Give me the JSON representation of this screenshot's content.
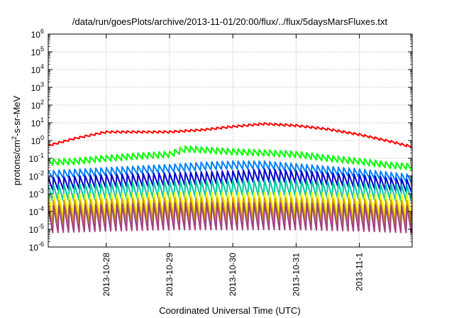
{
  "chart_data": {
    "type": "line",
    "title": "/data/run/goesPlots/archive/2013-11-01/20:00/flux/../flux/5daysMarsFluxes.txt",
    "xlabel": "Coordinated Universal Time (UTC)",
    "ylabel": {
      "prefix": "protons/cm",
      "sup": "2",
      "suffix": "-s-sr-MeV"
    },
    "yscale": "log",
    "ylim": [
      1e-06,
      1000000.0
    ],
    "xlim": [
      "2013-10-27T02:00",
      "2013-11-01T20:00"
    ],
    "grid": true,
    "legend": "none",
    "y_ticks": [
      {
        "base": "10",
        "exp": "6"
      },
      {
        "base": "10",
        "exp": "5"
      },
      {
        "base": "10",
        "exp": "4"
      },
      {
        "base": "10",
        "exp": "3"
      },
      {
        "base": "10",
        "exp": "2"
      },
      {
        "base": "10",
        "exp": "1"
      },
      {
        "base": "10",
        "exp": "0"
      },
      {
        "base": "10",
        "exp": "-1"
      },
      {
        "base": "10",
        "exp": "-2"
      },
      {
        "base": "10",
        "exp": "-3"
      },
      {
        "base": "10",
        "exp": "-4"
      },
      {
        "base": "10",
        "exp": "-5"
      },
      {
        "base": "10",
        "exp": "-6"
      }
    ],
    "x_ticks": [
      "2013-10-28",
      "2013-10-29",
      "2013-10-30",
      "2013-10-31",
      "2013-11-1"
    ],
    "sawtooth_period_hours": 2,
    "series": [
      {
        "color": "#ff0000",
        "low_amplitude_decades": 0.12,
        "x": [
          "2013-10-27T02:00",
          "2013-10-27T12:00",
          "2013-10-28T00:00",
          "2013-10-28T12:00",
          "2013-10-29T00:00",
          "2013-10-29T12:00",
          "2013-10-30T00:00",
          "2013-10-30T12:00",
          "2013-10-31T00:00",
          "2013-10-31T12:00",
          "2013-11-01T00:00",
          "2013-11-01T12:00",
          "2013-11-01T20:00"
        ],
        "y": [
          0.6,
          1.5,
          3.5,
          3.5,
          3.5,
          4.5,
          7,
          10,
          8,
          5,
          2.5,
          1,
          0.5
        ]
      },
      {
        "color": "#00ff00",
        "low_amplitude_decades": 0.35,
        "x": [
          "2013-10-27T02:00",
          "2013-10-27T12:00",
          "2013-10-28T00:00",
          "2013-10-28T12:00",
          "2013-10-29T00:00",
          "2013-10-29T06:00",
          "2013-10-29T12:00",
          "2013-10-30T00:00",
          "2013-10-30T12:00",
          "2013-10-31T00:00",
          "2013-10-31T12:00",
          "2013-11-01T00:00",
          "2013-11-01T12:00",
          "2013-11-01T20:00"
        ],
        "y": [
          0.09,
          0.1,
          0.15,
          0.2,
          0.25,
          0.5,
          0.45,
          0.35,
          0.3,
          0.25,
          0.15,
          0.1,
          0.06,
          0.05
        ]
      },
      {
        "color": "#0080ff",
        "low_amplitude_decades": 0.45,
        "x": [
          "2013-10-27T02:00",
          "2013-10-28T00:00",
          "2013-10-29T00:00",
          "2013-10-29T12:00",
          "2013-10-30T00:00",
          "2013-10-30T12:00",
          "2013-10-31T00:00",
          "2013-11-01T00:00",
          "2013-11-01T20:00"
        ],
        "y": [
          0.02,
          0.03,
          0.045,
          0.06,
          0.07,
          0.07,
          0.05,
          0.025,
          0.012
        ]
      },
      {
        "color": "#0000cc",
        "low_amplitude_decades": 0.7,
        "x": [
          "2013-10-27T02:00",
          "2013-10-28T00:00",
          "2013-10-29T00:00",
          "2013-10-30T00:00",
          "2013-10-30T12:00",
          "2013-10-31T00:00",
          "2013-11-01T00:00",
          "2013-11-01T20:00"
        ],
        "y": [
          0.008,
          0.012,
          0.015,
          0.02,
          0.025,
          0.02,
          0.012,
          0.006
        ]
      },
      {
        "color": "#00c8a0",
        "low_amplitude_decades": 0.9,
        "x": [
          "2013-10-27T02:00",
          "2013-10-28T00:00",
          "2013-10-29T00:00",
          "2013-10-30T00:00",
          "2013-10-31T00:00",
          "2013-11-01T00:00",
          "2013-11-01T20:00"
        ],
        "y": [
          0.003,
          0.004,
          0.005,
          0.006,
          0.006,
          0.004,
          0.003
        ]
      },
      {
        "color": "#ffff00",
        "low_amplitude_decades": 1.2,
        "x": [
          "2013-10-27T02:00",
          "2013-10-28T00:00",
          "2013-10-29T00:00",
          "2013-10-30T00:00",
          "2013-10-31T00:00",
          "2013-11-01T00:00",
          "2013-11-01T20:00"
        ],
        "y": [
          0.0009,
          0.001,
          0.0012,
          0.0012,
          0.0012,
          0.001,
          0.0009
        ]
      },
      {
        "color": "#c8a000",
        "low_amplitude_decades": 1.3,
        "x": [
          "2013-10-27T02:00",
          "2013-10-28T00:00",
          "2013-10-29T00:00",
          "2013-10-30T00:00",
          "2013-10-31T00:00",
          "2013-11-01T00:00",
          "2013-11-01T20:00"
        ],
        "y": [
          0.0004,
          0.0005,
          0.0006,
          0.0006,
          0.0006,
          0.0005,
          0.0004
        ]
      },
      {
        "color": "#a04080",
        "low_amplitude_decades": 1.5,
        "x": [
          "2013-10-27T02:00",
          "2013-10-28T00:00",
          "2013-10-29T00:00",
          "2013-10-30T00:00",
          "2013-10-31T00:00",
          "2013-11-01T00:00",
          "2013-11-01T20:00"
        ],
        "y": [
          0.0002,
          0.00025,
          0.0003,
          0.0003,
          0.0003,
          0.00025,
          0.0002
        ]
      }
    ]
  }
}
